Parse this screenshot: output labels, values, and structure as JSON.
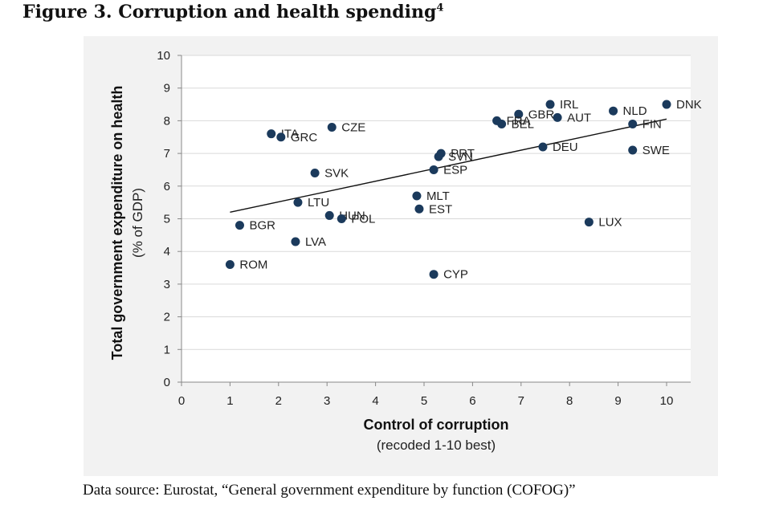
{
  "figure": {
    "title": "Figure 3. Corruption and health spending",
    "footnote_mark": "4",
    "source": "Data source: Eurostat, “General government expenditure by function (COFOG)”"
  },
  "chart_data": {
    "type": "scatter",
    "xlabel": "Control of corruption",
    "xlabel_sub": "(recoded 1-10 best)",
    "ylabel": "Total government expenditure on health",
    "ylabel_sub": "(% of GDP)",
    "xlim": [
      0,
      10
    ],
    "ylim": [
      0,
      10
    ],
    "xticks": [
      "0",
      "1",
      "2",
      "3",
      "4",
      "5",
      "6",
      "7",
      "8",
      "9",
      "10"
    ],
    "yticks": [
      "0",
      "1",
      "2",
      "3",
      "4",
      "5",
      "6",
      "7",
      "8",
      "9",
      "10"
    ],
    "grid": "horizontal",
    "marker_color": "#1b3a5c",
    "trendline": {
      "x": [
        1.0,
        10.0
      ],
      "y": [
        5.2,
        8.05
      ]
    },
    "points": [
      {
        "label": "DNK",
        "x": 10.0,
        "y": 8.5
      },
      {
        "label": "NLD",
        "x": 8.9,
        "y": 8.3
      },
      {
        "label": "FIN",
        "x": 9.3,
        "y": 7.9
      },
      {
        "label": "SWE",
        "x": 9.3,
        "y": 7.1
      },
      {
        "label": "IRL",
        "x": 7.6,
        "y": 8.5
      },
      {
        "label": "AUT",
        "x": 7.75,
        "y": 8.1
      },
      {
        "label": "GBR",
        "x": 6.95,
        "y": 8.2
      },
      {
        "label": "FRA",
        "x": 6.5,
        "y": 8.0
      },
      {
        "label": "BEL",
        "x": 6.6,
        "y": 7.9
      },
      {
        "label": "DEU",
        "x": 7.45,
        "y": 7.2
      },
      {
        "label": "LUX",
        "x": 8.4,
        "y": 4.9
      },
      {
        "label": "PRT",
        "x": 5.35,
        "y": 7.0
      },
      {
        "label": "SVN",
        "x": 5.3,
        "y": 6.9
      },
      {
        "label": "ESP",
        "x": 5.2,
        "y": 6.5
      },
      {
        "label": "MLT",
        "x": 4.85,
        "y": 5.7
      },
      {
        "label": "EST",
        "x": 4.9,
        "y": 5.3
      },
      {
        "label": "CYP",
        "x": 5.2,
        "y": 3.3
      },
      {
        "label": "CZE",
        "x": 3.1,
        "y": 7.8
      },
      {
        "label": "ITA",
        "x": 1.85,
        "y": 7.6
      },
      {
        "label": "GRC",
        "x": 2.05,
        "y": 7.5
      },
      {
        "label": "SVK",
        "x": 2.75,
        "y": 6.4
      },
      {
        "label": "LTU",
        "x": 2.4,
        "y": 5.5
      },
      {
        "label": "HUN",
        "x": 3.05,
        "y": 5.1
      },
      {
        "label": "POL",
        "x": 3.3,
        "y": 5.0
      },
      {
        "label": "LVA",
        "x": 2.35,
        "y": 4.3
      },
      {
        "label": "BGR",
        "x": 1.2,
        "y": 4.8
      },
      {
        "label": "ROM",
        "x": 1.0,
        "y": 3.6
      }
    ]
  }
}
